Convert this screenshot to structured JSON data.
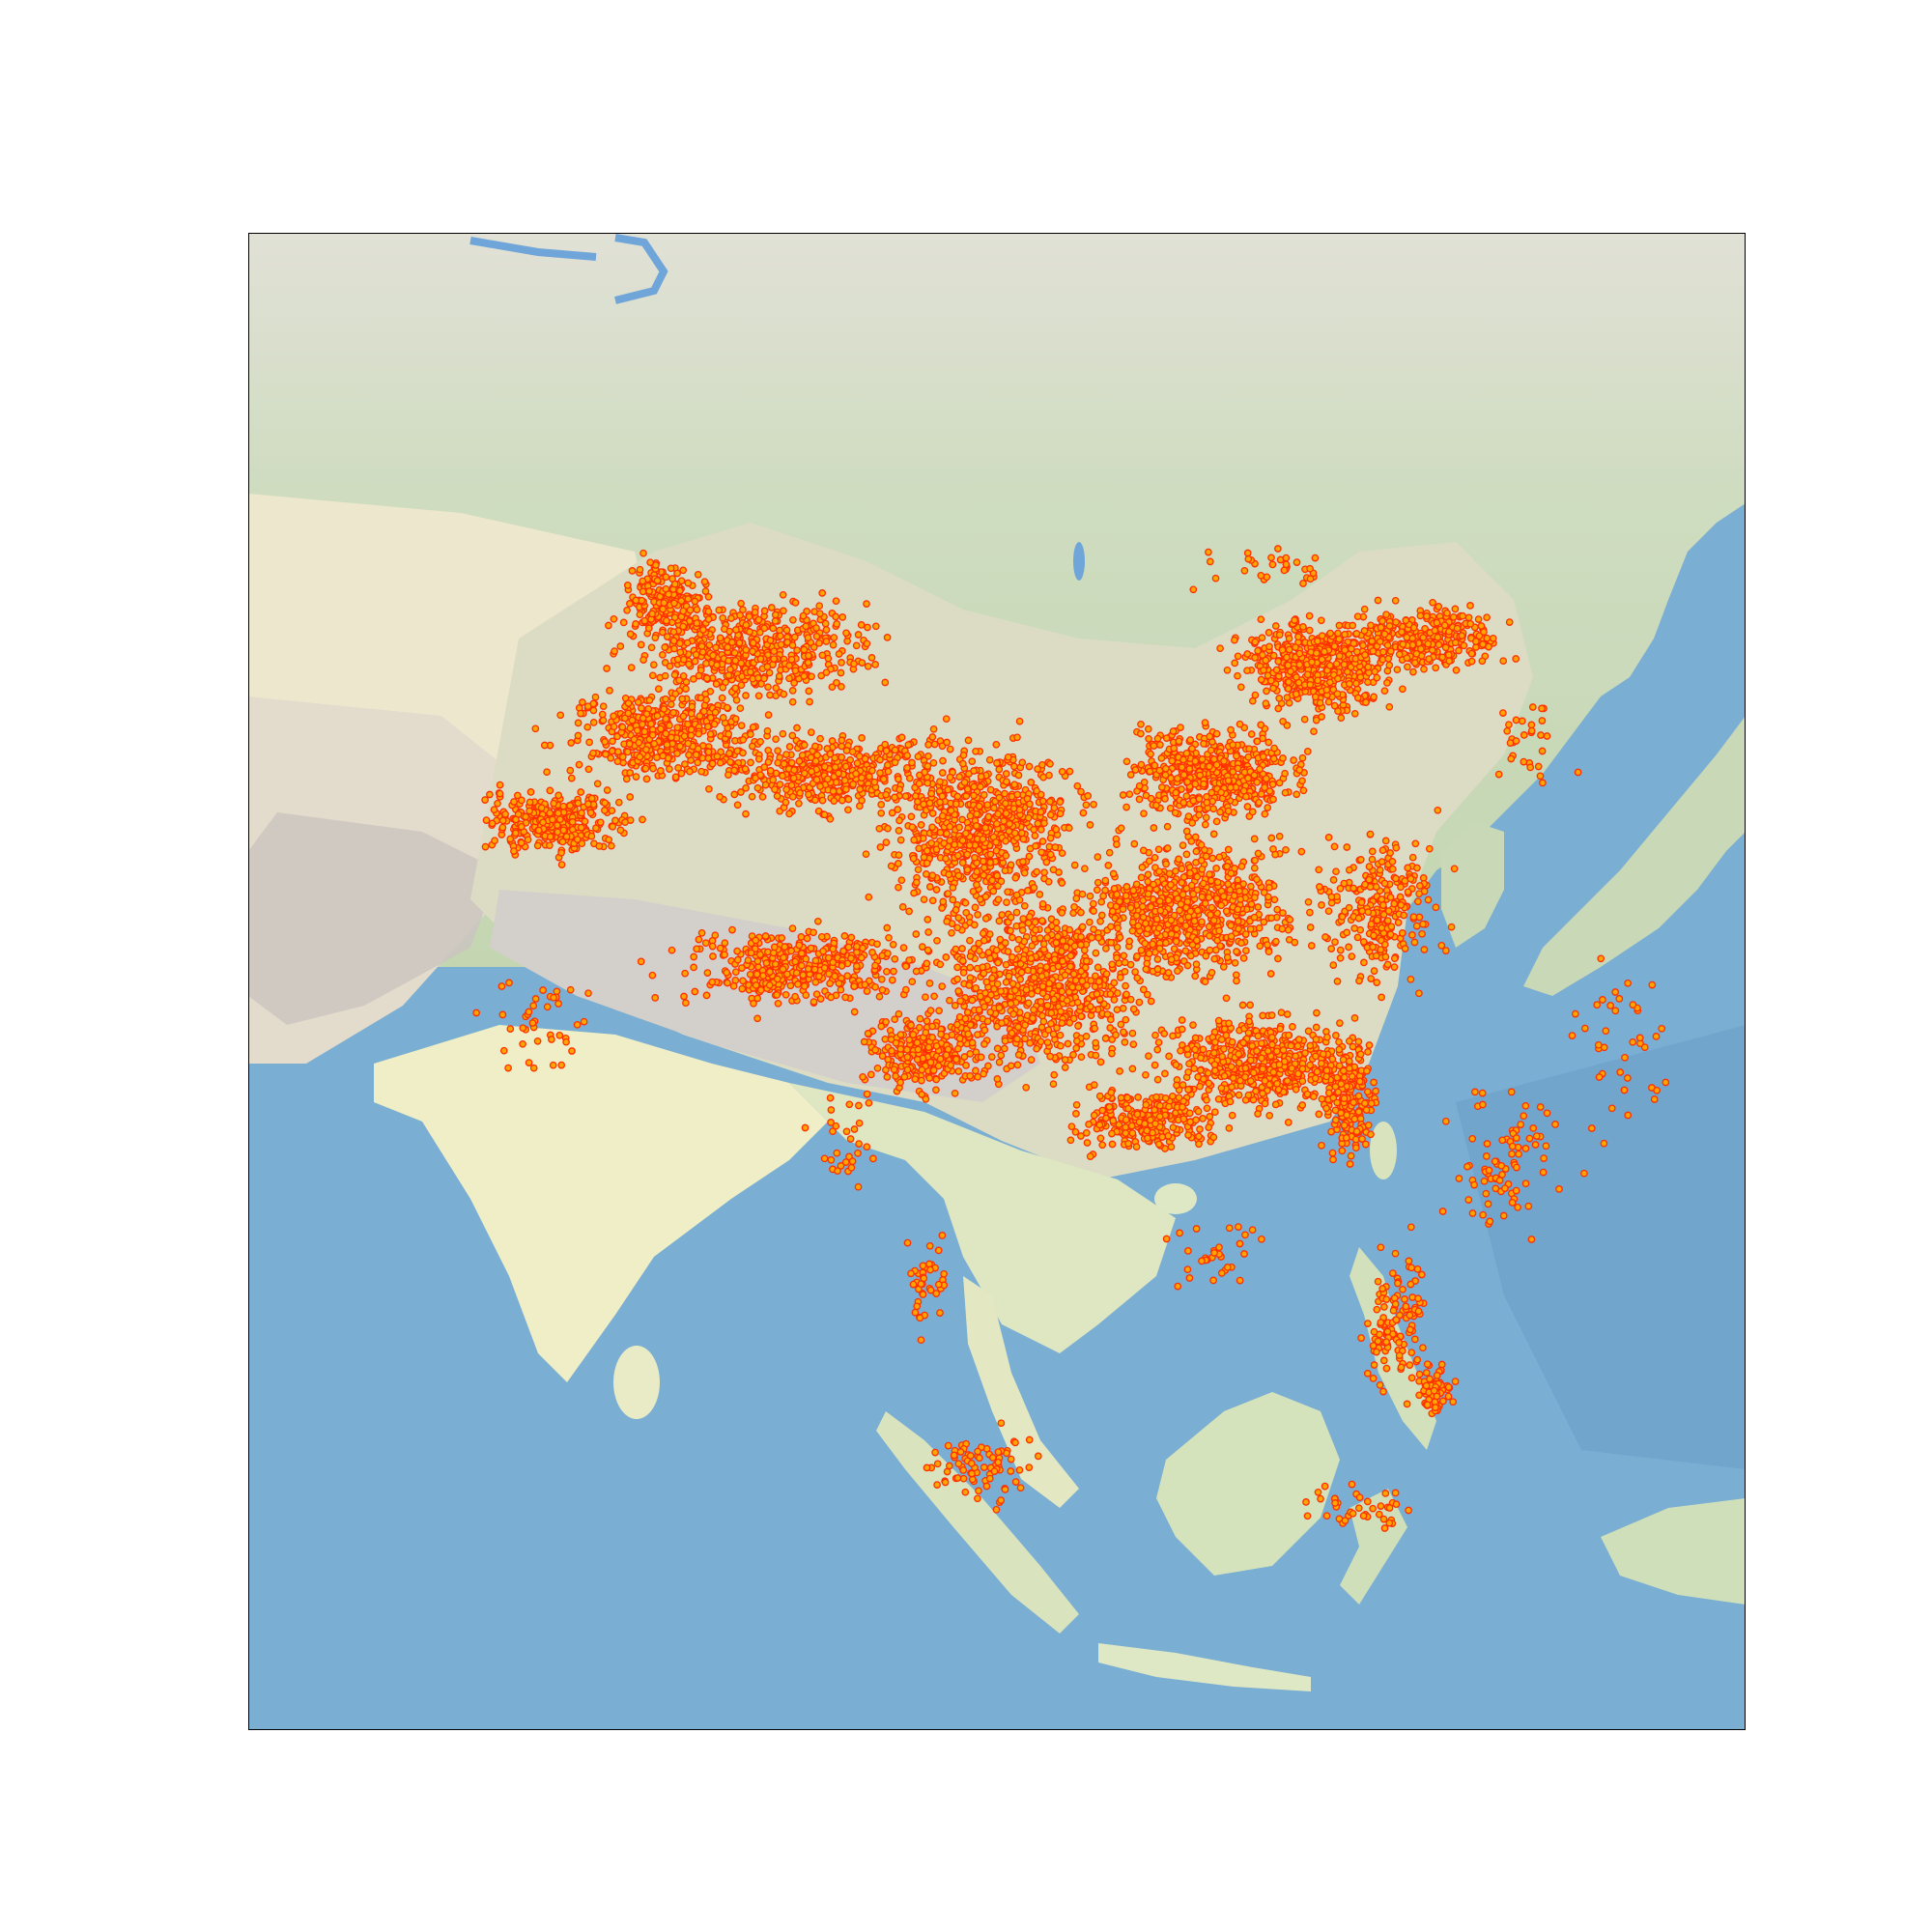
{
  "map": {
    "kind": "occurrence-points",
    "colors": {
      "ocean": "#7aaed2",
      "ocean_deep": "#6b9fc6",
      "land_green": "#c6d8b4",
      "land_tundra": "#dcdccf",
      "land_desert": "#efeccc",
      "land_arid": "#e8e2cf",
      "mountain": "#cfcbc4",
      "lake": "#6fa5d8",
      "point_fill": "#ffa500",
      "point_stroke": "#ff3000",
      "frame": "#000000"
    },
    "point_density": {
      "core": "very high",
      "outlying": "scattered"
    }
  }
}
